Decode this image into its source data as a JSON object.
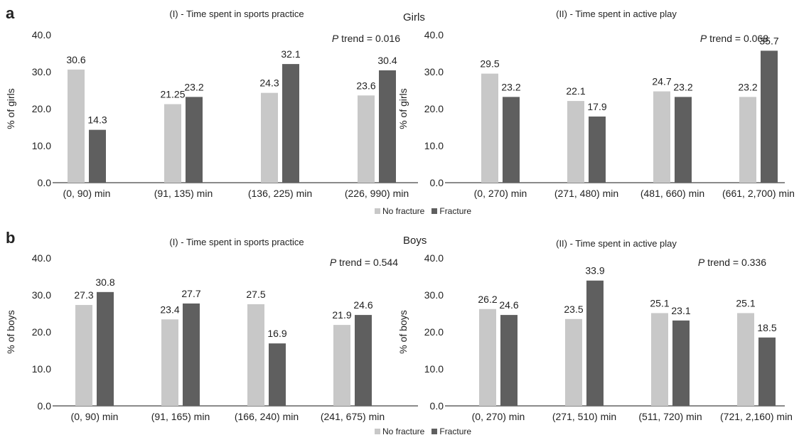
{
  "panels": {
    "a": {
      "letter": "a",
      "group_label": "Girls",
      "legend": {
        "no_fracture": "No fracture",
        "fracture": "Fracture"
      }
    },
    "b": {
      "letter": "b",
      "group_label": "Boys",
      "legend": {
        "no_fracture": "No fracture",
        "fracture": "Fracture"
      }
    }
  },
  "colors": {
    "no_fracture": "#c8c8c8",
    "fracture": "#5f5f5f",
    "axis": "#444444",
    "text": "#222222"
  },
  "chart_data": [
    {
      "type": "bar",
      "title": "(I) - Time spent in sports practice",
      "ylabel": "% of girls",
      "ylim": [
        0,
        40
      ],
      "yticks": [
        "0.0",
        "10.0",
        "20.0",
        "30.0",
        "40.0"
      ],
      "annotation": {
        "italic": "P",
        "text": " trend = 0.016"
      },
      "categories": [
        "(0, 90) min",
        "(91, 135) min",
        "(136, 225) min",
        "(226, 990) min"
      ],
      "series": [
        {
          "name": "No fracture",
          "values": [
            30.6,
            21.25,
            24.3,
            23.6
          ],
          "labels": [
            "30.6",
            "21.25",
            "24.3",
            "23.6"
          ]
        },
        {
          "name": "Fracture",
          "values": [
            14.3,
            23.2,
            32.1,
            30.4
          ],
          "labels": [
            "14.3",
            "23.2",
            "32.1",
            "30.4"
          ]
        }
      ]
    },
    {
      "type": "bar",
      "title": "(II) - Time spent in active play",
      "ylabel": "% of girls",
      "ylim": [
        0,
        40
      ],
      "yticks": [
        "0.0",
        "10.0",
        "20.0",
        "30.0",
        "40.0"
      ],
      "annotation": {
        "italic": "P",
        "text": " trend = 0.068"
      },
      "categories": [
        "(0, 270) min",
        "(271, 480) min",
        "(481, 660) min",
        "(661, 2,700) min"
      ],
      "series": [
        {
          "name": "No fracture",
          "values": [
            29.5,
            22.1,
            24.7,
            23.2
          ],
          "labels": [
            "29.5",
            "22.1",
            "24.7",
            "23.2"
          ]
        },
        {
          "name": "Fracture",
          "values": [
            23.2,
            17.9,
            23.2,
            35.7
          ],
          "labels": [
            "23.2",
            "17.9",
            "23.2",
            "35.7"
          ]
        }
      ]
    },
    {
      "type": "bar",
      "title": "(I) - Time spent in sports practice",
      "ylabel": "% of boys",
      "ylim": [
        0,
        40
      ],
      "yticks": [
        "0.0",
        "10.0",
        "20.0",
        "30.0",
        "40.0"
      ],
      "annotation": {
        "italic": "P",
        "text": " trend = 0.544"
      },
      "categories": [
        "(0, 90) min",
        "(91, 165) min",
        "(166, 240) min",
        "(241, 675) min"
      ],
      "series": [
        {
          "name": "No fracture",
          "values": [
            27.3,
            23.4,
            27.5,
            21.9
          ],
          "labels": [
            "27.3",
            "23.4",
            "27.5",
            "21.9"
          ]
        },
        {
          "name": "Fracture",
          "values": [
            30.8,
            27.7,
            16.9,
            24.6
          ],
          "labels": [
            "30.8",
            "27.7",
            "16.9",
            "24.6"
          ]
        }
      ]
    },
    {
      "type": "bar",
      "title": "(II) - Time spent in active play",
      "ylabel": "% of boys",
      "ylim": [
        0,
        40
      ],
      "yticks": [
        "0.0",
        "10.0",
        "20.0",
        "30.0",
        "40.0"
      ],
      "annotation": {
        "italic": "P",
        "text": " trend = 0.336"
      },
      "categories": [
        "(0, 270) min",
        "(271, 510) min",
        "(511, 720) min",
        "(721, 2,160) min"
      ],
      "series": [
        {
          "name": "No fracture",
          "values": [
            26.2,
            23.5,
            25.1,
            25.1
          ],
          "labels": [
            "26.2",
            "23.5",
            "25.1",
            "25.1"
          ]
        },
        {
          "name": "Fracture",
          "values": [
            24.6,
            33.9,
            23.1,
            18.5
          ],
          "labels": [
            "24.6",
            "33.9",
            "23.1",
            "18.5"
          ]
        }
      ]
    }
  ]
}
